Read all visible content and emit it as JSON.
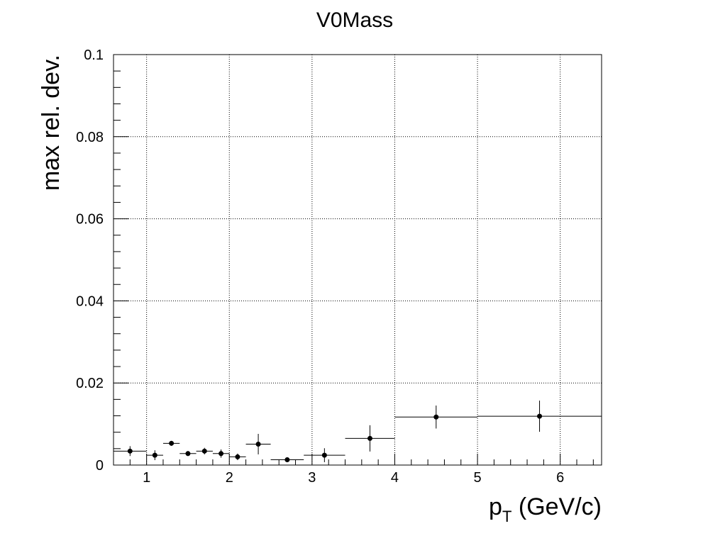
{
  "chart_data": {
    "type": "scatter",
    "title": "V0Mass",
    "xlabel": "p",
    "xlabel_sub": "T",
    "xlabel_unit": " (GeV/c)",
    "ylabel": "max rel. dev.",
    "xlim": [
      0.6,
      6.5
    ],
    "ylim": [
      0,
      0.1
    ],
    "x_ticks": [
      1,
      2,
      3,
      4,
      5,
      6
    ],
    "y_ticks": [
      0,
      0.02,
      0.04,
      0.06,
      0.08,
      0.1
    ],
    "x_tick_labels": [
      "1",
      "2",
      "3",
      "4",
      "5",
      "6"
    ],
    "y_tick_labels": [
      "0",
      "0.02",
      "0.04",
      "0.06",
      "0.08",
      "0.1"
    ],
    "grid": true,
    "marker_color": "#000000",
    "series": [
      {
        "points": [
          {
            "x": 0.8,
            "xlow": 0.6,
            "xhigh": 1.0,
            "y": 0.0034,
            "yerr": 0.0012
          },
          {
            "x": 1.1,
            "xlow": 1.0,
            "xhigh": 1.2,
            "y": 0.0024,
            "yerr": 0.0012
          },
          {
            "x": 1.3,
            "xlow": 1.2,
            "xhigh": 1.4,
            "y": 0.0053,
            "yerr": 0.0006
          },
          {
            "x": 1.5,
            "xlow": 1.4,
            "xhigh": 1.6,
            "y": 0.0028,
            "yerr": 0.0006
          },
          {
            "x": 1.7,
            "xlow": 1.6,
            "xhigh": 1.8,
            "y": 0.0034,
            "yerr": 0.0008
          },
          {
            "x": 1.9,
            "xlow": 1.8,
            "xhigh": 2.0,
            "y": 0.0028,
            "yerr": 0.001
          },
          {
            "x": 2.1,
            "xlow": 2.0,
            "xhigh": 2.2,
            "y": 0.002,
            "yerr": 0.0008
          },
          {
            "x": 2.35,
            "xlow": 2.2,
            "xhigh": 2.5,
            "y": 0.0051,
            "yerr": 0.0025
          },
          {
            "x": 2.7,
            "xlow": 2.5,
            "xhigh": 2.9,
            "y": 0.0013,
            "yerr": 0.0006
          },
          {
            "x": 3.15,
            "xlow": 2.9,
            "xhigh": 3.4,
            "y": 0.0024,
            "yerr": 0.0017
          },
          {
            "x": 3.7,
            "xlow": 3.4,
            "xhigh": 4.0,
            "y": 0.0065,
            "yerr": 0.0032
          },
          {
            "x": 4.5,
            "xlow": 4.0,
            "xhigh": 5.0,
            "y": 0.0117,
            "yerr": 0.0028
          },
          {
            "x": 5.75,
            "xlow": 5.0,
            "xhigh": 6.5,
            "y": 0.0119,
            "yerr": 0.0038
          }
        ]
      }
    ]
  }
}
